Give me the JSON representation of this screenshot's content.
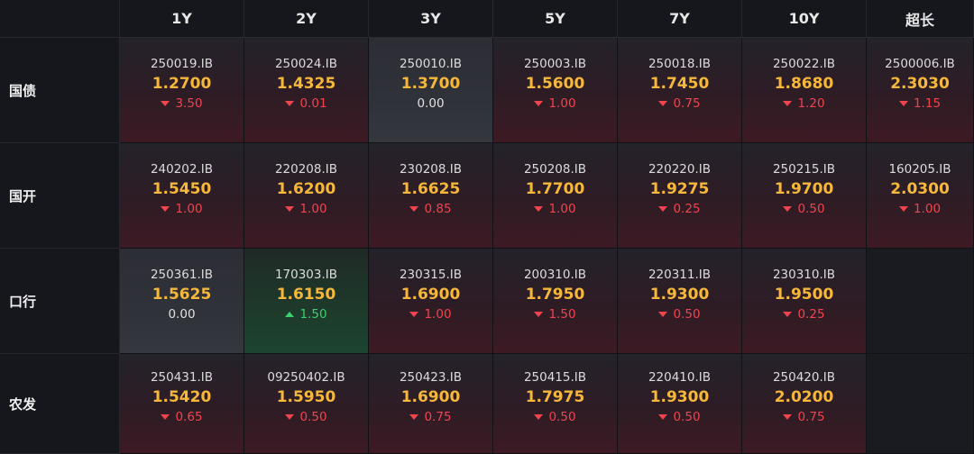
{
  "columns": [
    "1Y",
    "2Y",
    "3Y",
    "5Y",
    "7Y",
    "10Y",
    "超长"
  ],
  "rows": [
    {
      "label": "国债",
      "cells": [
        {
          "code": "250019.IB",
          "yield": "1.2700",
          "change": "3.50",
          "dir": "down"
        },
        {
          "code": "250024.IB",
          "yield": "1.4325",
          "change": "0.01",
          "dir": "down"
        },
        {
          "code": "250010.IB",
          "yield": "1.3700",
          "change": "0.00",
          "dir": "flat"
        },
        {
          "code": "250003.IB",
          "yield": "1.5600",
          "change": "1.00",
          "dir": "down"
        },
        {
          "code": "250018.IB",
          "yield": "1.7450",
          "change": "0.75",
          "dir": "down"
        },
        {
          "code": "250022.IB",
          "yield": "1.8680",
          "change": "1.20",
          "dir": "down"
        },
        {
          "code": "2500006.IB",
          "yield": "2.3030",
          "change": "1.15",
          "dir": "down"
        }
      ]
    },
    {
      "label": "国开",
      "cells": [
        {
          "code": "240202.IB",
          "yield": "1.5450",
          "change": "1.00",
          "dir": "down"
        },
        {
          "code": "220208.IB",
          "yield": "1.6200",
          "change": "1.00",
          "dir": "down"
        },
        {
          "code": "230208.IB",
          "yield": "1.6625",
          "change": "0.85",
          "dir": "down"
        },
        {
          "code": "250208.IB",
          "yield": "1.7700",
          "change": "1.00",
          "dir": "down"
        },
        {
          "code": "220220.IB",
          "yield": "1.9275",
          "change": "0.25",
          "dir": "down"
        },
        {
          "code": "250215.IB",
          "yield": "1.9700",
          "change": "0.50",
          "dir": "down"
        },
        {
          "code": "160205.IB",
          "yield": "2.0300",
          "change": "1.00",
          "dir": "down"
        }
      ]
    },
    {
      "label": "口行",
      "cells": [
        {
          "code": "250361.IB",
          "yield": "1.5625",
          "change": "0.00",
          "dir": "flat"
        },
        {
          "code": "170303.IB",
          "yield": "1.6150",
          "change": "1.50",
          "dir": "up"
        },
        {
          "code": "230315.IB",
          "yield": "1.6900",
          "change": "1.00",
          "dir": "down"
        },
        {
          "code": "200310.IB",
          "yield": "1.7950",
          "change": "1.50",
          "dir": "down"
        },
        {
          "code": "220311.IB",
          "yield": "1.9300",
          "change": "0.50",
          "dir": "down"
        },
        {
          "code": "230310.IB",
          "yield": "1.9500",
          "change": "0.25",
          "dir": "down"
        },
        null
      ]
    },
    {
      "label": "农发",
      "cells": [
        {
          "code": "250431.IB",
          "yield": "1.5420",
          "change": "0.65",
          "dir": "down"
        },
        {
          "code": "09250402.IB",
          "yield": "1.5950",
          "change": "0.50",
          "dir": "down"
        },
        {
          "code": "250423.IB",
          "yield": "1.6900",
          "change": "0.75",
          "dir": "down"
        },
        {
          "code": "250415.IB",
          "yield": "1.7975",
          "change": "0.50",
          "dir": "down"
        },
        {
          "code": "220410.IB",
          "yield": "1.9300",
          "change": "0.50",
          "dir": "down"
        },
        {
          "code": "250420.IB",
          "yield": "2.0200",
          "change": "0.75",
          "dir": "down"
        },
        null
      ]
    }
  ],
  "colors": {
    "yield": "#f5b83d",
    "down": "#f0444f",
    "up": "#3bd16f",
    "flat": "#e0e0e0"
  },
  "icons": {
    "down": "triangle-down-icon",
    "up": "triangle-up-icon"
  }
}
